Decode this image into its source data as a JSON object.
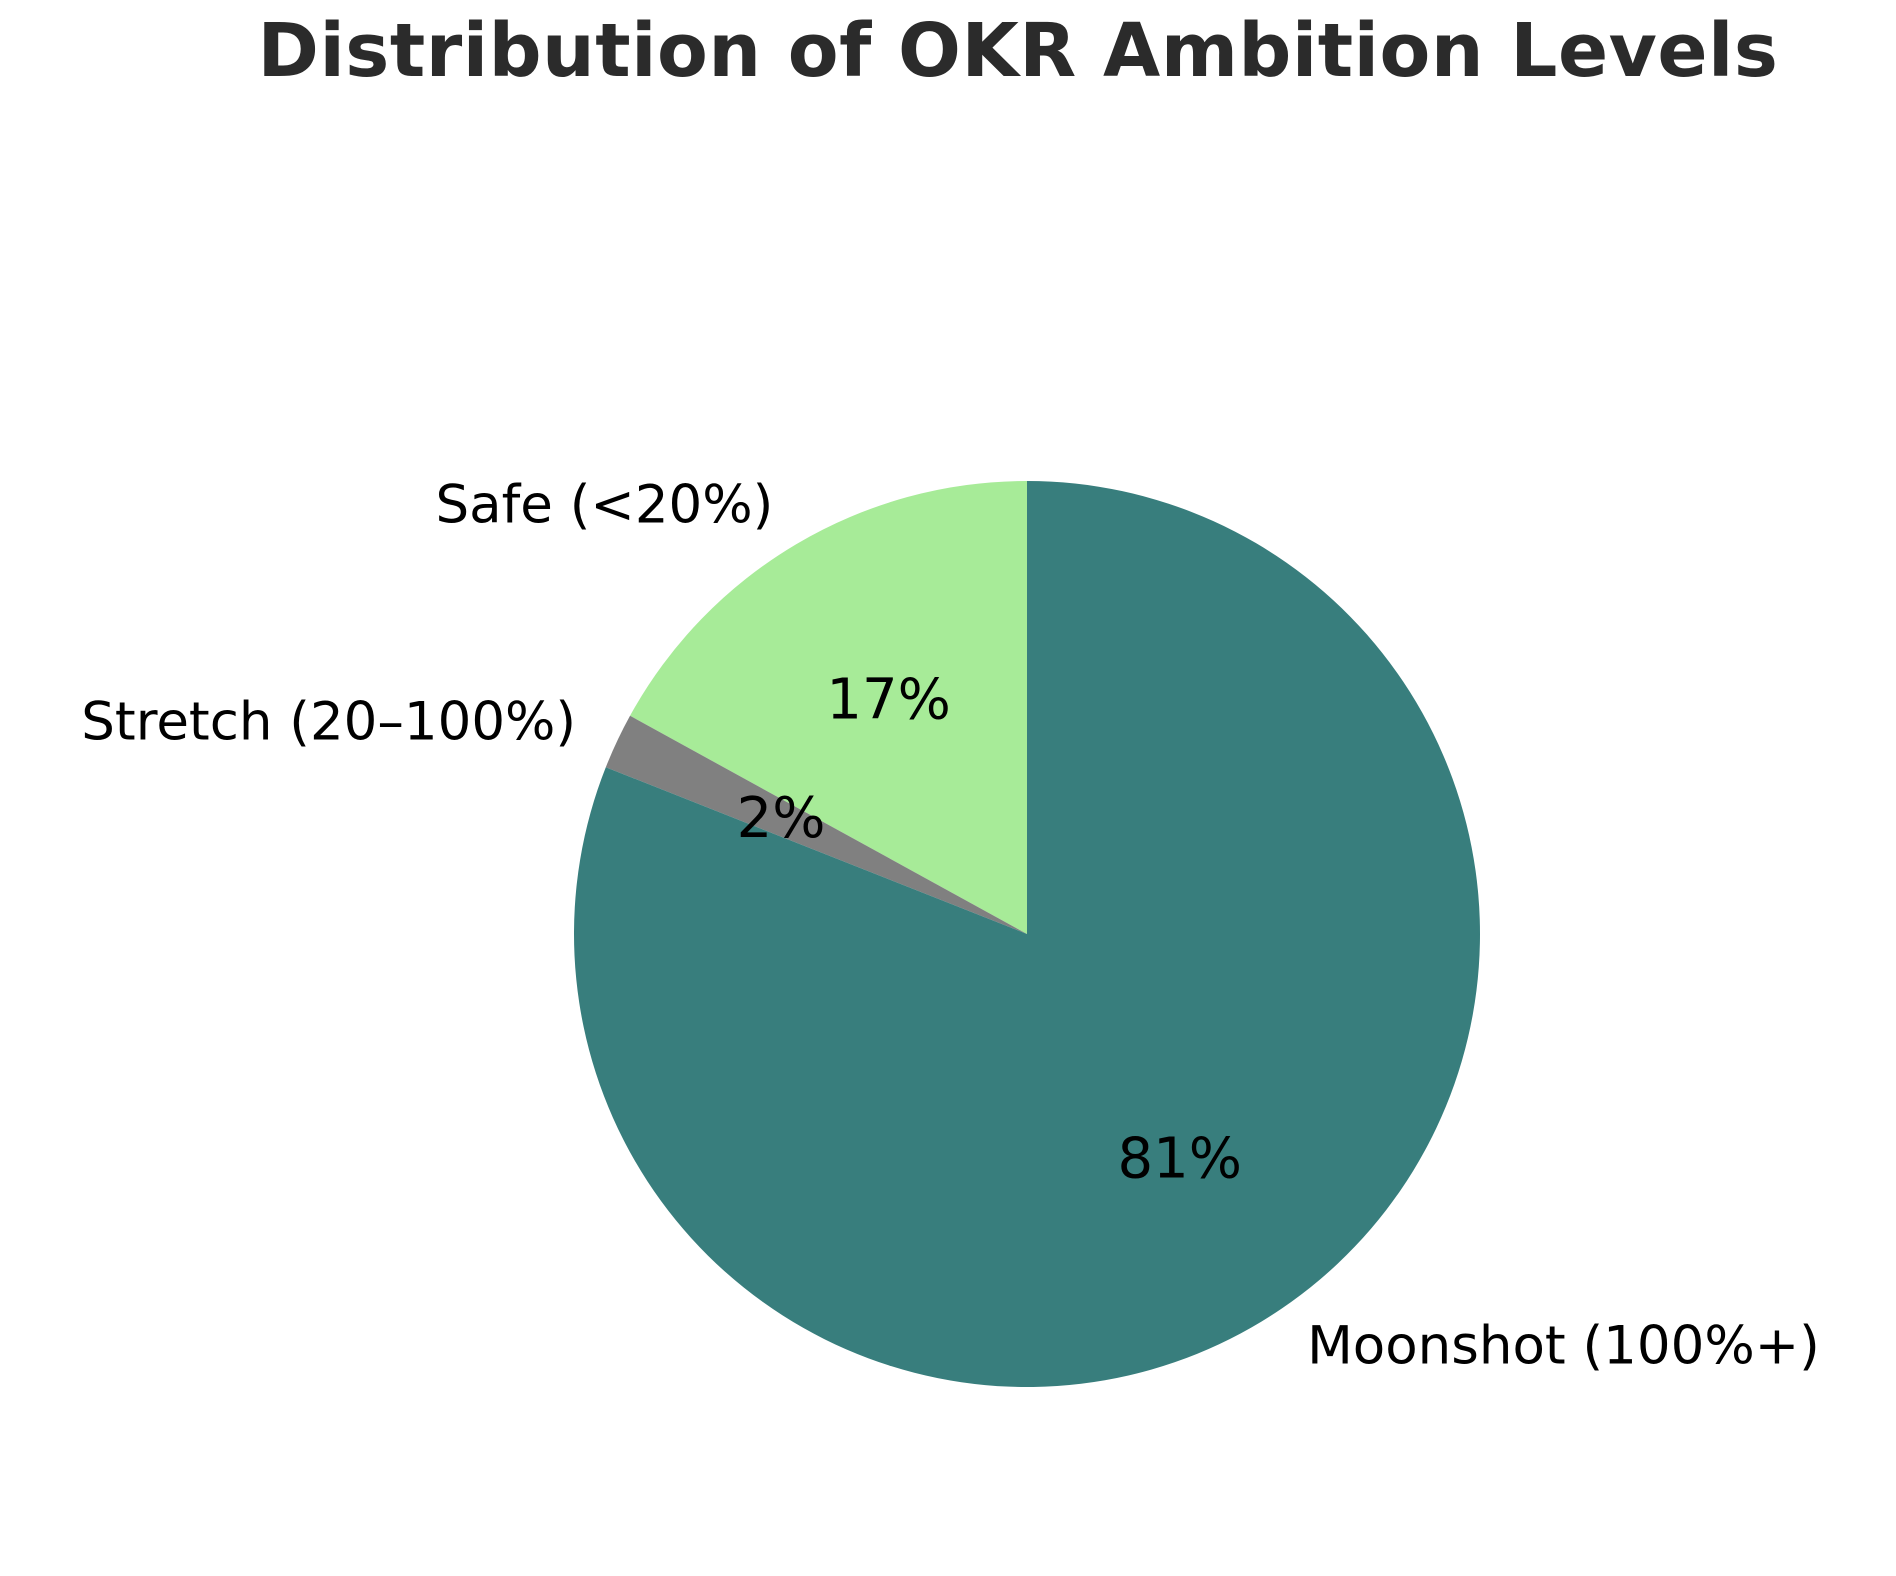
{
  "chart_data": {
    "type": "pie",
    "title": "Distribution of OKR Ambition Levels",
    "start_angle_deg": 90,
    "direction": "counterclockwise",
    "slices": [
      {
        "label": "Safe (<20%)",
        "value": 17,
        "pct_label": "17%",
        "color": "#a7eb98"
      },
      {
        "label": "Stretch (20–100%)",
        "value": 2,
        "pct_label": "2%",
        "color": "#808080"
      },
      {
        "label": "Moonshot (100%+)",
        "value": 81,
        "pct_label": "81%",
        "color": "#387e7d"
      }
    ]
  }
}
